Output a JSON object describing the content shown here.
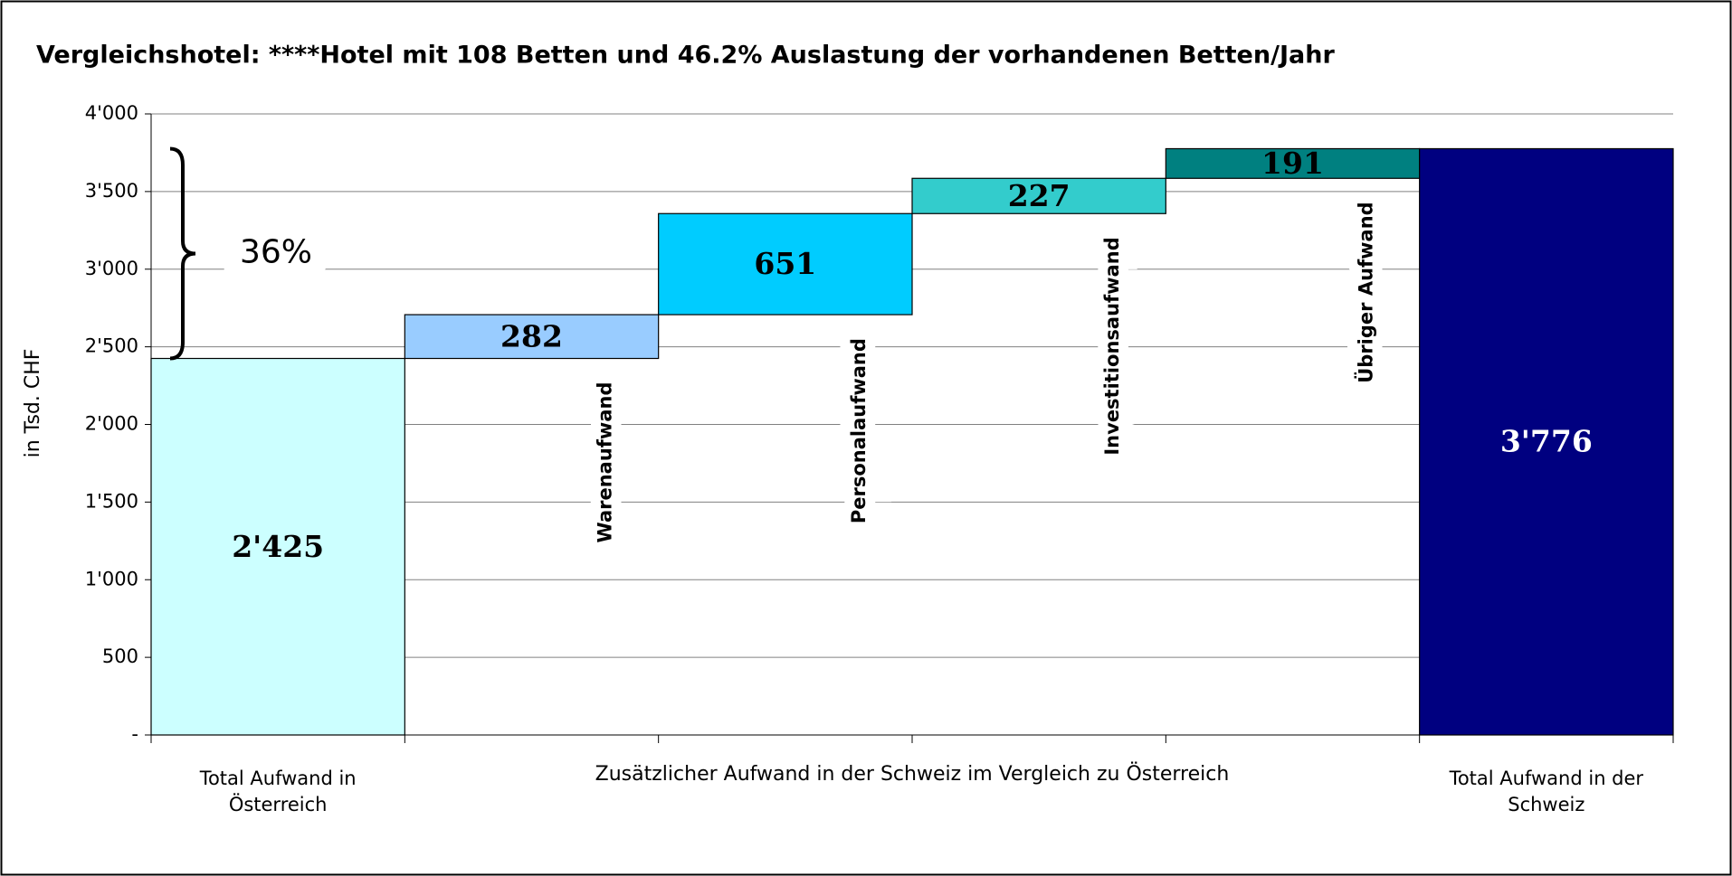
{
  "chart_data": {
    "type": "waterfall",
    "title": "Vergleichshotel: ****Hotel mit 108 Betten und 46.2% Auslastung der vorhandenen Betten/Jahr",
    "y_axis_label": "in Tsd. CHF",
    "group_label": "Zusätzlicher Aufwand in der Schweiz im Vergleich zu Österreich",
    "annotation": "36%",
    "categories": [
      "Total Aufwand in Österreich",
      "Warenaufwand",
      "Personalaufwand",
      "Investitionsaufwand",
      "Übriger Aufwand",
      "Total Aufwand in der Schweiz"
    ],
    "measures": [
      "total",
      "relative",
      "relative",
      "relative",
      "relative",
      "total"
    ],
    "values": [
      2425,
      282,
      651,
      227,
      191,
      3776
    ],
    "value_labels": [
      "2'425",
      "282",
      "651",
      "227",
      "191",
      "3'776"
    ],
    "colors": [
      "#ccffff",
      "#99ccff",
      "#00ccff",
      "#33cccc",
      "#008080",
      "#000080"
    ],
    "value_label_colors": [
      "#000000",
      "#000000",
      "#000000",
      "#000000",
      "#000000",
      "#ffffff"
    ],
    "ylim": [
      0,
      4000
    ],
    "yticks": [
      {
        "value": 0,
        "label": "-"
      },
      500,
      {
        "value": 1000,
        "label": "1'000"
      },
      {
        "value": 1500,
        "label": "1'500"
      },
      {
        "value": 2000,
        "label": "2'000"
      },
      {
        "value": 2500,
        "label": "2'500"
      },
      {
        "value": 3000,
        "label": "3'000"
      },
      {
        "value": 3500,
        "label": "3'500"
      },
      {
        "value": 4000,
        "label": "4'000"
      }
    ],
    "grid": true
  }
}
